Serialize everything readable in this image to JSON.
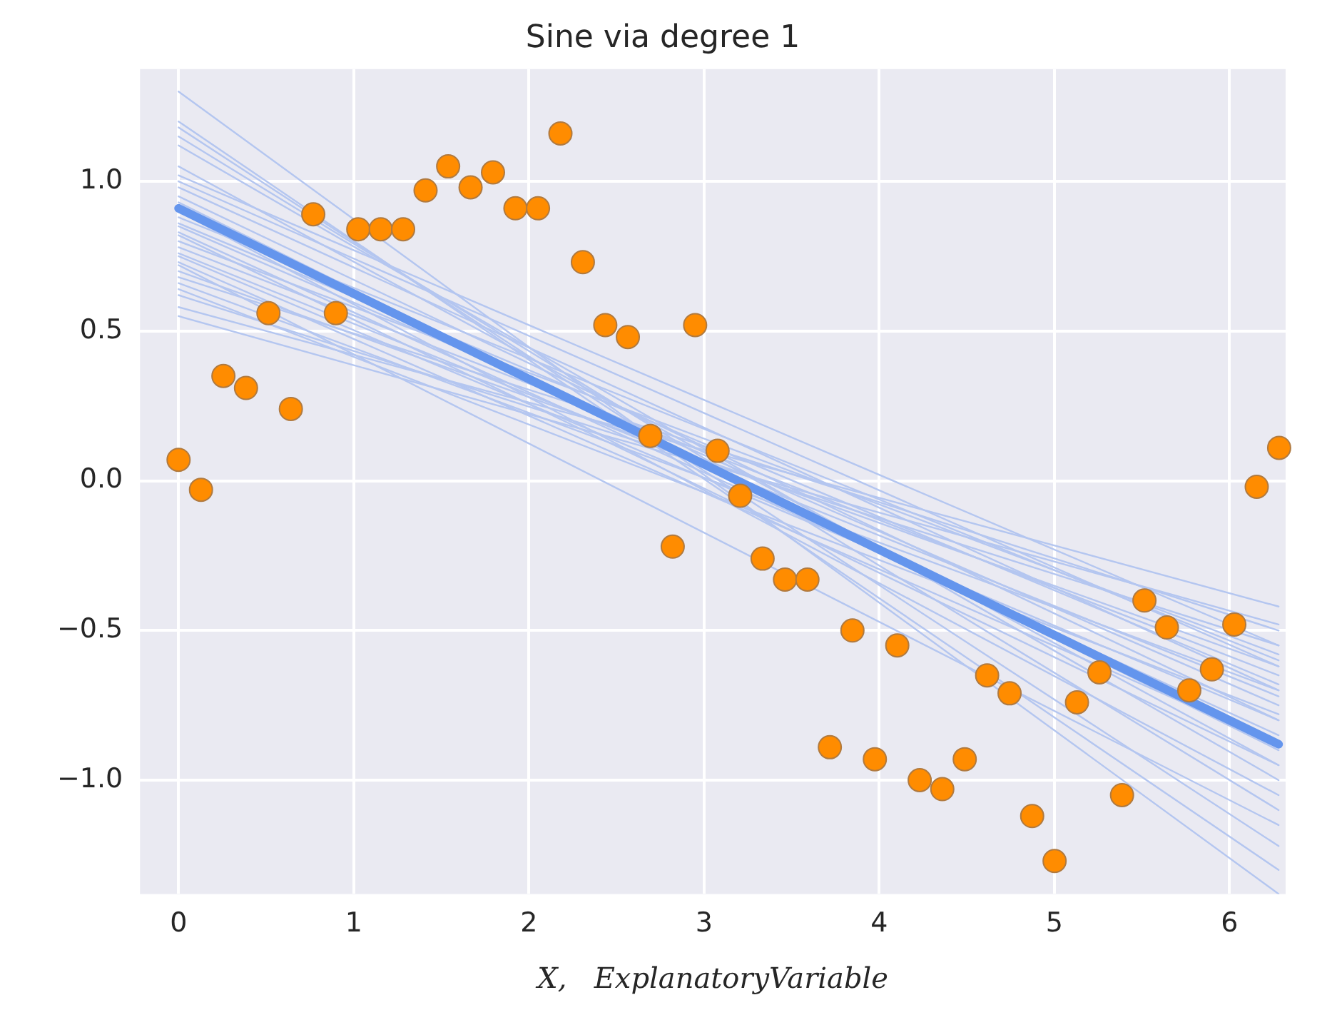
{
  "chart_data": {
    "type": "scatter",
    "title": "Sine via degree 1",
    "xlabel": "X,   ExplanatoryVariable",
    "xlim": [
      -0.22,
      6.32
    ],
    "ylim": [
      -1.38,
      1.375
    ],
    "xticks": [
      0,
      1,
      2,
      3,
      4,
      5,
      6
    ],
    "yticks": [
      {
        "value": -1,
        "label": "−1.0"
      },
      {
        "value": -0.5,
        "label": "−0.5"
      },
      {
        "value": 0,
        "label": "0.0"
      },
      {
        "value": 0.5,
        "label": "0.5"
      },
      {
        "value": 1,
        "label": "1.0"
      }
    ],
    "grid": true,
    "legend": false,
    "series": [
      {
        "type": "line",
        "color": "#b4c6f0",
        "x": [
          0,
          6.28
        ],
        "values": [
          1.3,
          -1.38
        ]
      },
      {
        "type": "line",
        "color": "#b4c6f0",
        "x": [
          0,
          6.28
        ],
        "values": [
          1.2,
          -1.3
        ]
      },
      {
        "type": "line",
        "color": "#b4c6f0",
        "x": [
          0,
          6.28
        ],
        "values": [
          1.18,
          -1.22
        ]
      },
      {
        "type": "line",
        "color": "#b4c6f0",
        "x": [
          0,
          6.28
        ],
        "values": [
          1.15,
          -1.1
        ]
      },
      {
        "type": "line",
        "color": "#b4c6f0",
        "x": [
          0,
          6.28
        ],
        "values": [
          1.12,
          -1.0
        ]
      },
      {
        "type": "line",
        "color": "#b4c6f0",
        "x": [
          0,
          6.28
        ],
        "values": [
          1.05,
          -0.95
        ]
      },
      {
        "type": "line",
        "color": "#b4c6f0",
        "x": [
          0,
          6.28
        ],
        "values": [
          1.02,
          -0.55
        ]
      },
      {
        "type": "line",
        "color": "#b4c6f0",
        "x": [
          0,
          6.28
        ],
        "values": [
          1.0,
          -0.62
        ]
      },
      {
        "type": "line",
        "color": "#b4c6f0",
        "x": [
          0,
          6.28
        ],
        "values": [
          0.98,
          -0.7
        ]
      },
      {
        "type": "line",
        "color": "#b4c6f0",
        "x": [
          0,
          6.28
        ],
        "values": [
          0.95,
          -0.8
        ]
      },
      {
        "type": "line",
        "color": "#b4c6f0",
        "x": [
          0,
          6.28
        ],
        "values": [
          0.93,
          -0.9
        ]
      },
      {
        "type": "line",
        "color": "#b4c6f0",
        "x": [
          0,
          6.28
        ],
        "values": [
          0.9,
          -1.05
        ]
      },
      {
        "type": "line",
        "color": "#b4c6f0",
        "x": [
          0,
          6.28
        ],
        "values": [
          0.88,
          -0.6
        ]
      },
      {
        "type": "line",
        "color": "#b4c6f0",
        "x": [
          0,
          6.28
        ],
        "values": [
          0.86,
          -0.68
        ]
      },
      {
        "type": "line",
        "color": "#b4c6f0",
        "x": [
          0,
          6.28
        ],
        "values": [
          0.85,
          -0.75
        ]
      },
      {
        "type": "line",
        "color": "#b4c6f0",
        "x": [
          0,
          6.28
        ],
        "values": [
          0.83,
          -0.85
        ]
      },
      {
        "type": "line",
        "color": "#b4c6f0",
        "x": [
          0,
          6.28
        ],
        "values": [
          0.82,
          -0.95
        ]
      },
      {
        "type": "line",
        "color": "#b4c6f0",
        "x": [
          0,
          6.28
        ],
        "values": [
          0.8,
          -0.58
        ]
      },
      {
        "type": "line",
        "color": "#b4c6f0",
        "x": [
          0,
          6.28
        ],
        "values": [
          0.78,
          -0.65
        ]
      },
      {
        "type": "line",
        "color": "#b4c6f0",
        "x": [
          0,
          6.28
        ],
        "values": [
          0.76,
          -0.72
        ]
      },
      {
        "type": "line",
        "color": "#b4c6f0",
        "x": [
          0,
          6.28
        ],
        "values": [
          0.75,
          -0.8
        ]
      },
      {
        "type": "line",
        "color": "#b4c6f0",
        "x": [
          0,
          6.28
        ],
        "values": [
          0.73,
          -0.88
        ]
      },
      {
        "type": "line",
        "color": "#b4c6f0",
        "x": [
          0,
          6.28
        ],
        "values": [
          0.72,
          -1.15
        ]
      },
      {
        "type": "line",
        "color": "#b4c6f0",
        "x": [
          0,
          6.28
        ],
        "values": [
          0.7,
          -0.62
        ]
      },
      {
        "type": "line",
        "color": "#b4c6f0",
        "x": [
          0,
          6.28
        ],
        "values": [
          0.68,
          -0.5
        ]
      },
      {
        "type": "line",
        "color": "#b4c6f0",
        "x": [
          0,
          6.28
        ],
        "values": [
          0.66,
          -0.7
        ]
      },
      {
        "type": "line",
        "color": "#b4c6f0",
        "x": [
          0,
          6.28
        ],
        "values": [
          0.64,
          -0.78
        ]
      },
      {
        "type": "line",
        "color": "#b4c6f0",
        "x": [
          0,
          6.28
        ],
        "values": [
          0.62,
          -0.55
        ]
      },
      {
        "type": "line",
        "color": "#b4c6f0",
        "x": [
          0,
          6.28
        ],
        "values": [
          0.58,
          -0.42
        ]
      },
      {
        "type": "line",
        "color": "#b4c6f0",
        "x": [
          0,
          6.28
        ],
        "values": [
          0.55,
          -0.48
        ]
      },
      {
        "type": "line",
        "color": "#6495ed",
        "x": [
          0,
          6.28
        ],
        "values": [
          0.91,
          -0.88
        ]
      },
      {
        "color": "#ff8c00",
        "marker": "circle",
        "x": [
          0,
          0.128,
          0.256,
          0.385,
          0.513,
          0.641,
          0.769,
          0.898,
          1.026,
          1.154,
          1.282,
          1.41,
          1.539,
          1.667,
          1.795,
          1.923,
          2.052,
          2.18,
          2.308,
          2.436,
          2.565,
          2.693,
          2.821,
          2.949,
          3.077,
          3.206,
          3.334,
          3.462,
          3.59,
          3.718,
          3.847,
          3.975,
          4.103,
          4.231,
          4.36,
          4.488,
          4.616,
          4.744,
          4.873,
          5.001,
          5.129,
          5.257,
          5.386,
          5.514,
          5.642,
          5.77,
          5.899,
          6.027,
          6.155,
          6.283
        ],
        "values": [
          0.07,
          -0.03,
          0.35,
          0.31,
          0.56,
          0.24,
          0.89,
          0.56,
          0.84,
          0.84,
          0.84,
          0.97,
          1.05,
          0.98,
          1.03,
          0.91,
          0.91,
          1.16,
          0.73,
          0.52,
          0.48,
          0.15,
          -0.22,
          0.52,
          0.1,
          -0.05,
          -0.26,
          -0.33,
          -0.33,
          -0.89,
          -0.5,
          -0.93,
          -0.55,
          -1.0,
          -1.03,
          -0.93,
          -0.65,
          -0.71,
          -1.12,
          -1.27,
          -0.74,
          -0.64,
          -1.05,
          -0.4,
          -0.49,
          -0.7,
          -0.63,
          -0.48,
          -0.02,
          0.11
        ]
      }
    ]
  }
}
